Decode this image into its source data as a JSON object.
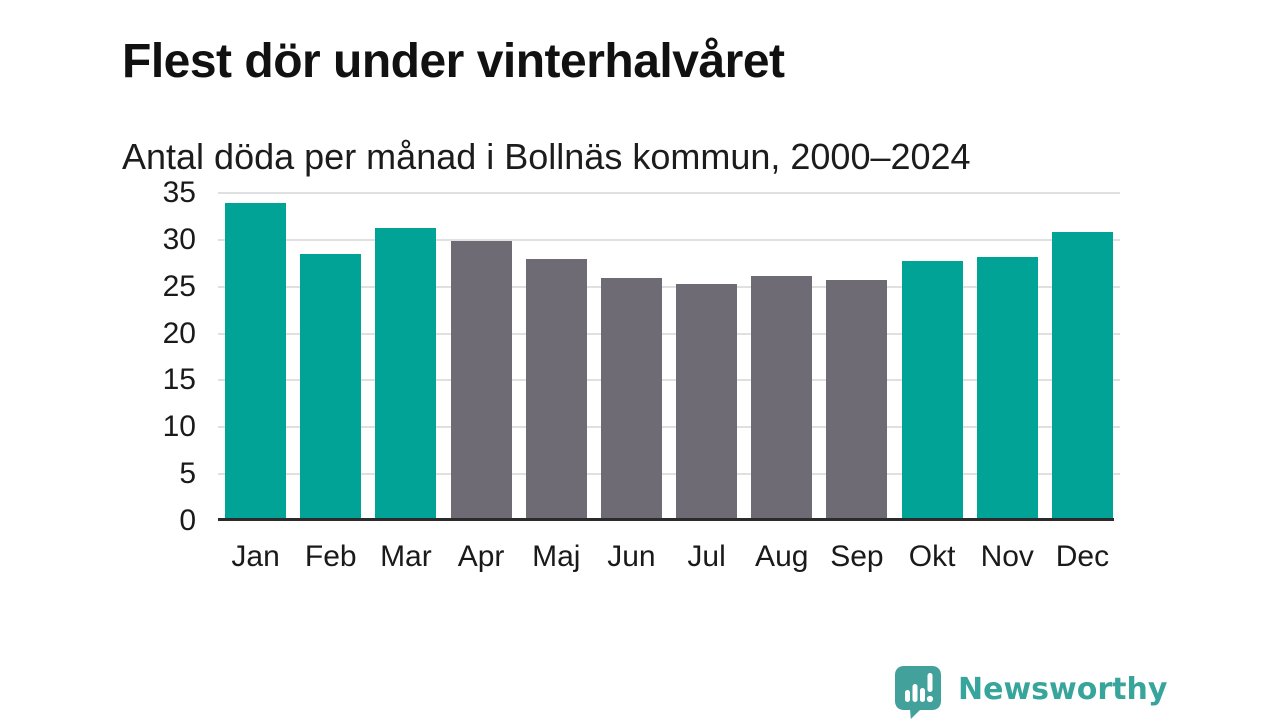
{
  "header": {
    "title": "Flest dör under vinterhalvåret",
    "subtitle": "Antal döda per månad i Bollnäs kommun, 2000–2024"
  },
  "chart_data": {
    "type": "bar",
    "title": "Flest dör under vinterhalvåret",
    "subtitle": "Antal döda per månad i Bollnäs kommun, 2000–2024",
    "categories": [
      "Jan",
      "Feb",
      "Mar",
      "Apr",
      "Maj",
      "Jun",
      "Jul",
      "Aug",
      "Sep",
      "Okt",
      "Nov",
      "Dec"
    ],
    "values": [
      33.9,
      28.5,
      31.3,
      29.9,
      28.0,
      25.9,
      25.3,
      26.1,
      25.7,
      27.7,
      28.2,
      30.8
    ],
    "bar_roles": [
      "highlight",
      "highlight",
      "highlight",
      "muted",
      "muted",
      "muted",
      "muted",
      "muted",
      "muted",
      "highlight",
      "highlight",
      "highlight"
    ],
    "xlabel": "",
    "ylabel": "",
    "ylim": [
      0,
      35
    ],
    "yticks": [
      0,
      5,
      10,
      15,
      20,
      25,
      30,
      35
    ],
    "grid": true,
    "legend_position": "none",
    "colors": {
      "highlight": "#00a396",
      "muted": "#6f6b74",
      "gridline": "#e0e0e0",
      "axis_line": "#2b2b2b",
      "tick_text": "#1a1a1a"
    }
  },
  "footer": {
    "brand_name": "Newsworthy",
    "logo_icon": "newsworthy-speech-bubble-chart-icon",
    "brand_color": "#38a59c",
    "logo_color": "#43a19b"
  }
}
